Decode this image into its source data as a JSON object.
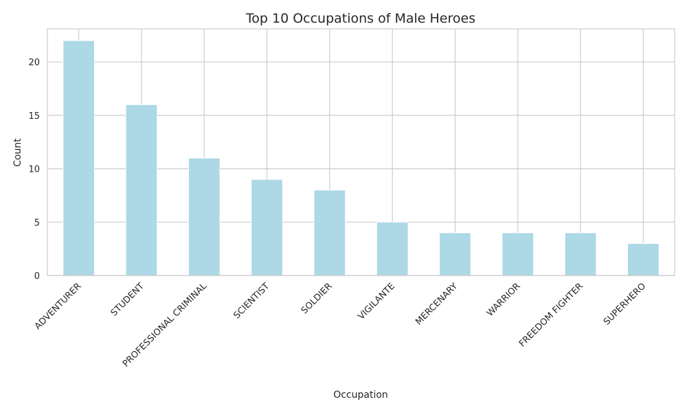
{
  "chart_data": {
    "type": "bar",
    "title": "Top 10 Occupations of Male Heroes",
    "xlabel": "Occupation",
    "ylabel": "Count",
    "categories": [
      "ADVENTURER",
      "STUDENT",
      "PROFESSIONAL CRIMINAL",
      "SCIENTIST",
      "SOLDIER",
      "VIGILANTE",
      "MERCENARY",
      "WARRIOR",
      "FREEDOM FIGHTER",
      "SUPERHERO"
    ],
    "values": [
      22,
      16,
      11,
      9,
      8,
      5,
      4,
      4,
      4,
      3
    ],
    "ylim": [
      0,
      23.1
    ],
    "yticks": [
      0,
      5,
      10,
      15,
      20
    ],
    "grid": true,
    "legend": "none",
    "colors": {
      "bar": "#add8e6",
      "grid": "#cccccc",
      "axes_edge": "#cccccc",
      "background": "#ffffff"
    }
  }
}
